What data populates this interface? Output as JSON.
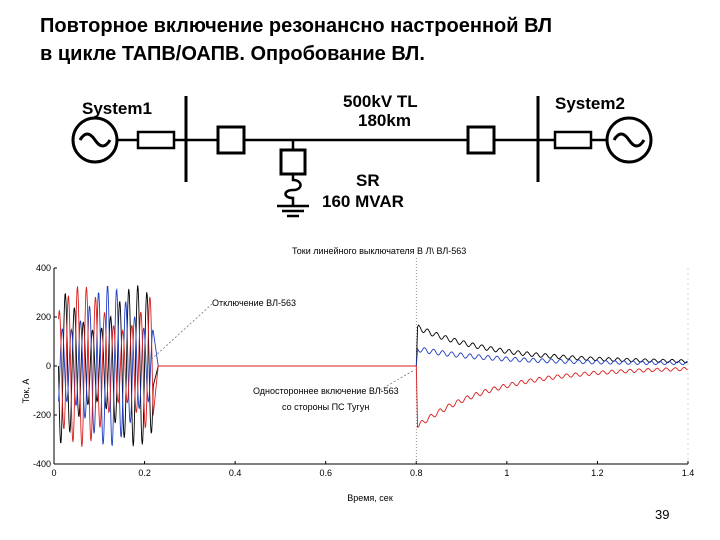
{
  "slide": {
    "title_line1": "Повторное включение резонансно настроенной ВЛ",
    "title_line2": "в цикле ТАПВ/ОАПВ. Опробование ВЛ.",
    "page_number": "39"
  },
  "diagram": {
    "system1_label": "System1",
    "system2_label": "System2",
    "line_label_1": "500kV TL",
    "line_label_2": "180km",
    "reactor_label_1": "SR",
    "reactor_label_2": "160 MVAR"
  },
  "chart_data": {
    "type": "line",
    "title": "Токи линейного выключателя В Л\\ ВЛ-563",
    "xlabel": "Время, сек",
    "ylabel": "Ток, А",
    "xlim": [
      0,
      1.4
    ],
    "ylim": [
      -400,
      400
    ],
    "x_ticks": [
      "0",
      "0.2",
      "0.4",
      "0.6",
      "0.8",
      "1",
      "1.2",
      "1.4"
    ],
    "y_ticks": [
      "400",
      "200",
      "0",
      "-200",
      "-400"
    ],
    "annotations": [
      {
        "text": "Отключение ВЛ-563",
        "x": 0.23,
        "y": 20
      },
      {
        "text_line1": "Одностороннее включение ВЛ-563",
        "text_line2": "со стороны ПС Тугун",
        "x": 0.8,
        "y": -20
      }
    ],
    "events": {
      "trip_time": 0.22,
      "reclose_time": 0.8
    },
    "series": [
      {
        "color": "#000000",
        "pre_amplitude": 330,
        "post_start": 160,
        "post_end": 15
      },
      {
        "color": "#1f3fbf",
        "pre_amplitude": 330,
        "post_start": 70,
        "post_end": 10
      },
      {
        "color": "#d81e1e",
        "pre_amplitude": 330,
        "post_start": -250,
        "post_end": -5
      }
    ]
  }
}
